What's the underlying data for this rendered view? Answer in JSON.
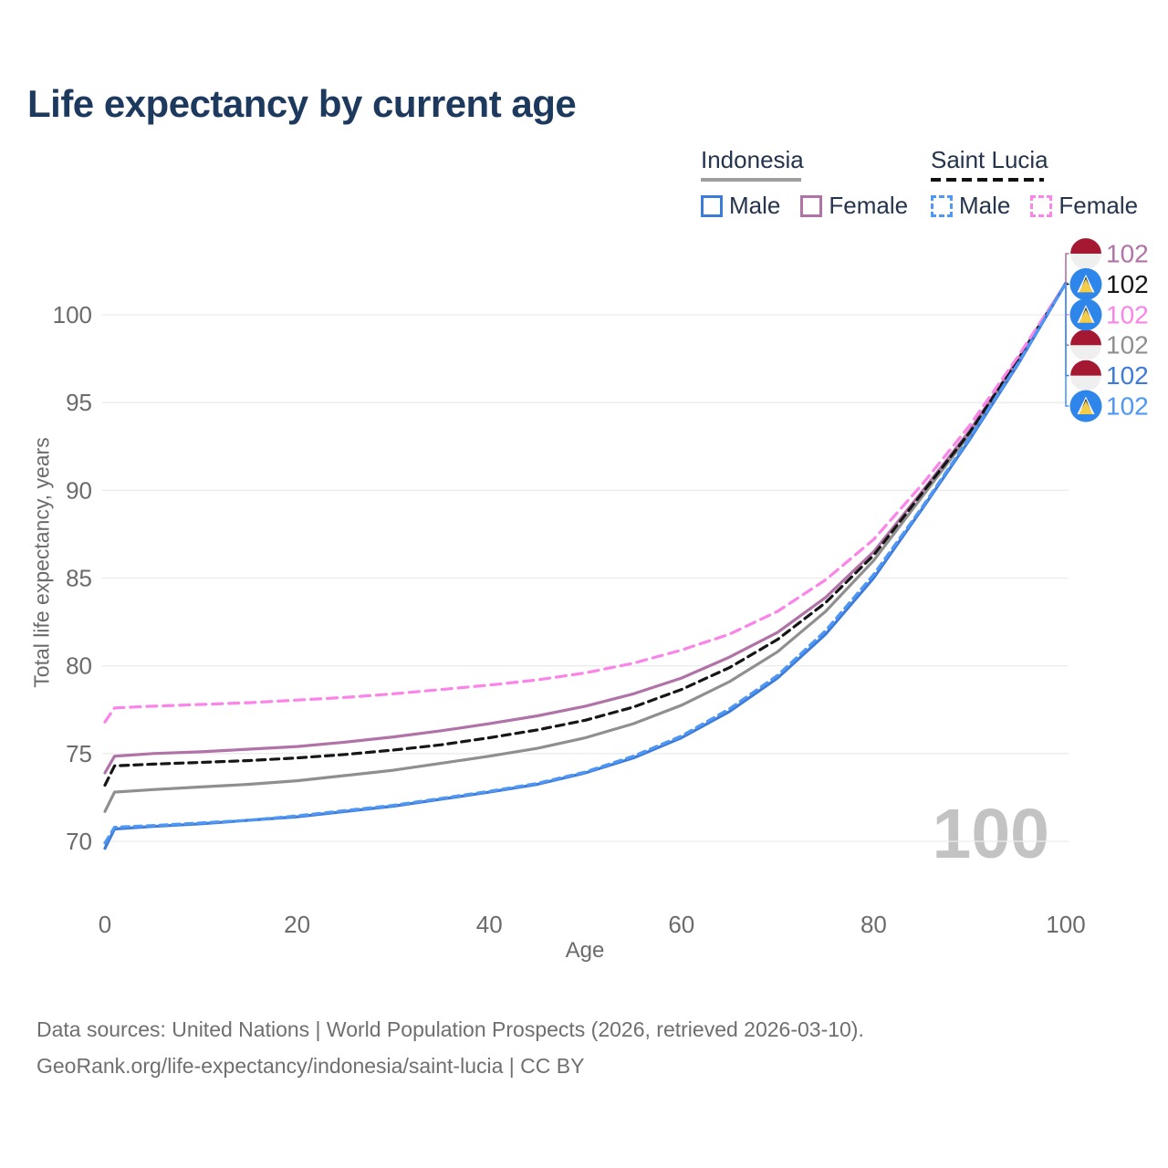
{
  "header": {
    "title": "Life expectancy by current age"
  },
  "legend": {
    "indonesia": {
      "label": "Indonesia",
      "male": "Male",
      "female": "Female"
    },
    "saint_lucia": {
      "label": "Saint Lucia",
      "male": "Male",
      "female": "Female"
    }
  },
  "footer": {
    "line1": "Data sources: United Nations | World Population Prospects (2026, retrieved 2026-03-10).",
    "line2": "GeoRank.org/life-expectancy/indonesia/saint-lucia | CC BY"
  },
  "colors": {
    "title_text": "#1d3a5e",
    "axis_text": "#6b6b6b",
    "gridline": "#ececec",
    "watermark": "#c3c3c3",
    "legend_text": "#24344d",
    "indonesia_underline": "#9e9e9e",
    "saint_lucia_underline": "#111111",
    "indonesia_male": "#3d7bd9",
    "indonesia_female": "#b173a7",
    "indonesia_overall": "#8f8f8f",
    "saint_lucia_male": "#4f97f5",
    "saint_lucia_female": "#fb84e8",
    "saint_lucia_overall": "#161616",
    "indonesia_flag_red": "#a41931",
    "indonesia_flag_white": "#efefef",
    "saint_lucia_flag_blue": "#2f86ea",
    "saint_lucia_flag_yellow": "#f4cd48"
  },
  "chart_data": {
    "type": "line",
    "title": "Life expectancy by current age",
    "xlabel": "Age",
    "ylabel": "Total life expectancy, years",
    "xlim": [
      0,
      100
    ],
    "ylim": [
      68.5,
      103.5
    ],
    "x_ticks": [
      0,
      20,
      40,
      60,
      80,
      100
    ],
    "y_ticks": [
      70,
      75,
      80,
      85,
      90,
      95,
      100
    ],
    "grid": "horizontal",
    "legend_position": "top-right",
    "watermark": "100",
    "x": [
      0,
      1,
      5,
      10,
      15,
      20,
      25,
      30,
      35,
      40,
      45,
      50,
      55,
      60,
      65,
      70,
      75,
      80,
      85,
      90,
      95,
      100
    ],
    "series": [
      {
        "key": "indonesia_overall",
        "name": "Indonesia",
        "country": "Indonesia",
        "group": "Overall",
        "color": "#8f8f8f",
        "dashed": false,
        "dash": "",
        "flag": "indonesia",
        "end_label": "102",
        "label_slot": 3,
        "values": [
          71.7,
          72.8,
          72.95,
          73.1,
          73.25,
          73.45,
          73.75,
          74.05,
          74.45,
          74.85,
          75.3,
          75.9,
          76.7,
          77.75,
          79.1,
          80.8,
          83.1,
          86.0,
          89.6,
          93.2,
          97.35,
          101.8
        ]
      },
      {
        "key": "indonesia_female",
        "name": "Indonesia Female",
        "country": "Indonesia",
        "group": "Female",
        "color": "#b173a7",
        "dashed": false,
        "dash": "",
        "flag": "indonesia",
        "end_label": "102",
        "label_slot": 0,
        "values": [
          73.9,
          74.85,
          75.0,
          75.1,
          75.25,
          75.4,
          75.65,
          75.95,
          76.3,
          76.7,
          77.15,
          77.7,
          78.4,
          79.3,
          80.5,
          81.9,
          83.9,
          86.5,
          89.9,
          93.4,
          97.45,
          101.8
        ]
      },
      {
        "key": "saint_lucia_overall",
        "name": "Saint Lucia",
        "country": "Saint Lucia",
        "group": "Overall",
        "color": "#161616",
        "dashed": true,
        "dash": "9 6",
        "flag": "saint-lucia",
        "end_label": "102",
        "label_slot": 1,
        "values": [
          73.2,
          74.3,
          74.4,
          74.5,
          74.6,
          74.75,
          74.95,
          75.2,
          75.5,
          75.9,
          76.35,
          76.9,
          77.65,
          78.65,
          79.9,
          81.5,
          83.6,
          86.3,
          89.8,
          93.3,
          97.4,
          101.8
        ]
      },
      {
        "key": "saint_lucia_female",
        "name": "Saint Lucia Female",
        "country": "Saint Lucia",
        "group": "Female",
        "color": "#fb84e8",
        "dashed": true,
        "dash": "11 7",
        "flag": "saint-lucia",
        "end_label": "102",
        "label_slot": 2,
        "values": [
          76.8,
          77.6,
          77.7,
          77.8,
          77.9,
          78.05,
          78.2,
          78.4,
          78.65,
          78.9,
          79.2,
          79.6,
          80.15,
          80.9,
          81.8,
          83.1,
          84.9,
          87.2,
          90.3,
          93.7,
          97.6,
          101.8
        ]
      },
      {
        "key": "indonesia_male",
        "name": "Indonesia Male",
        "country": "Indonesia",
        "group": "Male",
        "color": "#3d7bd9",
        "dashed": false,
        "dash": "",
        "flag": "indonesia",
        "end_label": "102",
        "label_slot": 4,
        "values": [
          69.6,
          70.7,
          70.85,
          71.0,
          71.2,
          71.4,
          71.7,
          72.0,
          72.4,
          72.8,
          73.25,
          73.9,
          74.75,
          75.9,
          77.4,
          79.3,
          81.8,
          85.0,
          88.9,
          92.9,
          97.15,
          101.8
        ]
      },
      {
        "key": "saint_lucia_male",
        "name": "Saint Lucia Male",
        "country": "Saint Lucia",
        "group": "Male",
        "color": "#4f97f5",
        "dashed": true,
        "dash": "8 6",
        "flag": "saint-lucia",
        "end_label": "102",
        "label_slot": 5,
        "values": [
          69.9,
          70.8,
          70.9,
          71.05,
          71.2,
          71.45,
          71.75,
          72.05,
          72.45,
          72.85,
          73.3,
          73.95,
          74.85,
          76.0,
          77.55,
          79.45,
          82.0,
          85.2,
          89.0,
          93.0,
          97.2,
          101.8
        ]
      }
    ]
  }
}
